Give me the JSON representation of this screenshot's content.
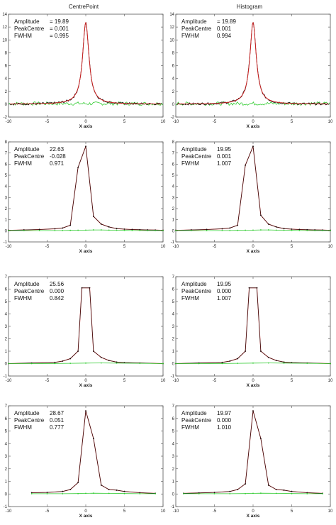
{
  "column_titles": [
    "CentrePoint",
    "Histogram"
  ],
  "colors": {
    "fit": "#cc2222",
    "data": "#111111",
    "residual": "#33cc33",
    "frame": "#555555"
  },
  "chart_data": [
    {
      "type": "line",
      "column": "CentrePoint",
      "xlabel": "X axis",
      "xlim": [
        -10,
        10
      ],
      "ylim": [
        -2,
        14
      ],
      "xticks": [
        "-10",
        "-5",
        "0",
        "5",
        "10"
      ],
      "yticks": [
        "-2",
        "0",
        "2",
        "4",
        "6",
        "8",
        "10",
        "12",
        "14"
      ],
      "stats": [
        {
          "label": "Amplitude",
          "value": "= 19.89"
        },
        {
          "label": "PeakCentre",
          "value": "= 0.001"
        },
        {
          "label": "FWHM",
          "value": "= 0.995"
        }
      ],
      "fit": {
        "shape": "lorentzian",
        "amplitude": 12.7,
        "fwhm": 0.995,
        "centre": 0.0
      },
      "series": [
        {
          "role": "data",
          "x": [
            -9.8,
            -8,
            -6,
            -5,
            -4,
            -3,
            -2.5,
            -2,
            -1.5,
            -1.2,
            -1,
            -0.8,
            -0.6,
            -0.4,
            -0.2,
            0,
            0.2,
            0.4,
            0.6,
            0.8,
            1,
            1.2,
            1.5,
            2,
            2.5,
            3,
            4,
            5,
            6,
            8,
            9.8
          ],
          "y": [
            0.1,
            0.2,
            0.3,
            0.4,
            0.6,
            0.9,
            1.3,
            1.8,
            2.8,
            3.7,
            4.5,
            5.8,
            7.6,
            9.8,
            11.9,
            12.7,
            11.8,
            9.8,
            7.6,
            5.9,
            4.4,
            3.6,
            2.7,
            1.9,
            1.2,
            0.9,
            0.6,
            0.4,
            0.3,
            0.2,
            0.1
          ]
        },
        {
          "role": "residual",
          "x": [
            -10,
            -5,
            0,
            5,
            10
          ],
          "y": [
            0.1,
            0.1,
            0.1,
            0.1,
            0.1
          ]
        }
      ]
    },
    {
      "type": "line",
      "column": "Histogram",
      "xlabel": "X axis",
      "xlim": [
        -10,
        10
      ],
      "ylim": [
        -2,
        14
      ],
      "xticks": [
        "-10",
        "-5",
        "0",
        "5",
        "10"
      ],
      "yticks": [
        "-2",
        "0",
        "2",
        "4",
        "6",
        "8",
        "10",
        "12",
        "14"
      ],
      "stats": [
        {
          "label": "Amplitude",
          "value": "= 19.89"
        },
        {
          "label": "PeakCentre",
          "value": "0.001"
        },
        {
          "label": "FWHM",
          "value": "0.994"
        }
      ],
      "fit": {
        "shape": "lorentzian",
        "amplitude": 12.7,
        "fwhm": 0.994,
        "centre": 0.0
      },
      "series": [
        {
          "role": "data",
          "x": [
            -9.8,
            -8,
            -6,
            -5,
            -4,
            -3,
            -2.5,
            -2,
            -1.5,
            -1.2,
            -1,
            -0.8,
            -0.6,
            -0.4,
            -0.2,
            0,
            0.2,
            0.4,
            0.6,
            0.8,
            1,
            1.2,
            1.5,
            2,
            2.5,
            3,
            4,
            5,
            6,
            8,
            9.8
          ],
          "y": [
            0.1,
            0.2,
            0.3,
            0.4,
            0.6,
            0.9,
            1.3,
            1.8,
            2.8,
            3.7,
            4.5,
            5.8,
            7.6,
            9.8,
            11.9,
            12.7,
            11.8,
            9.8,
            7.6,
            5.9,
            4.4,
            3.6,
            2.7,
            1.9,
            1.2,
            0.9,
            0.6,
            0.4,
            0.3,
            0.2,
            0.1
          ]
        },
        {
          "role": "residual",
          "x": [
            -10,
            -5,
            0,
            5,
            10
          ],
          "y": [
            0.1,
            0.1,
            0.1,
            0.1,
            0.1
          ]
        }
      ]
    },
    {
      "type": "line",
      "column": "CentrePoint",
      "xlabel": "X axis",
      "xlim": [
        -10,
        10
      ],
      "ylim": [
        -1,
        8
      ],
      "xticks": [
        "-10",
        "-5",
        "0",
        "5",
        "10"
      ],
      "yticks": [
        "-1",
        "0",
        "1",
        "2",
        "3",
        "4",
        "5",
        "6",
        "7",
        "8"
      ],
      "stats": [
        {
          "label": "Amplitude",
          "value": "22.63"
        },
        {
          "label": "PeakCentre",
          "value": "-0.028"
        },
        {
          "label": "FWHM",
          "value": "0.971"
        }
      ],
      "series": [
        {
          "role": "fit",
          "x": [
            -10,
            -8,
            -6,
            -4,
            -3,
            -2,
            -1,
            0,
            1,
            2,
            3,
            4,
            5,
            6,
            7,
            8,
            9,
            10
          ],
          "y": [
            0.05,
            0.08,
            0.12,
            0.18,
            0.25,
            0.5,
            5.7,
            7.6,
            1.3,
            0.6,
            0.35,
            0.2,
            0.15,
            0.12,
            0.1,
            0.08,
            0.07,
            0.05
          ]
        },
        {
          "role": "data",
          "x": [
            -10,
            -8,
            -6,
            -4,
            -3,
            -2,
            -1,
            0,
            1,
            2,
            3,
            4,
            5,
            6,
            7,
            8,
            9,
            10
          ],
          "y": [
            0.05,
            0.08,
            0.12,
            0.18,
            0.25,
            0.5,
            5.7,
            7.6,
            1.3,
            0.6,
            0.35,
            0.2,
            0.15,
            0.12,
            0.1,
            0.08,
            0.07,
            0.05
          ]
        },
        {
          "role": "residual",
          "x": [
            -10,
            -8,
            -6,
            -4,
            -3,
            -2,
            -1,
            0,
            1,
            2,
            3,
            4,
            5,
            6,
            7,
            8,
            9,
            10
          ],
          "y": [
            0.02,
            0.02,
            0.02,
            0.03,
            0.03,
            0.04,
            0.05,
            0.06,
            0.08,
            0.08,
            0.06,
            0.05,
            0.04,
            0.03,
            0.03,
            0.02,
            0.02,
            0.02
          ]
        }
      ]
    },
    {
      "type": "line",
      "column": "Histogram",
      "xlabel": "X axis",
      "xlim": [
        -10,
        10
      ],
      "ylim": [
        -1,
        8
      ],
      "xticks": [
        "-10",
        "-5",
        "0",
        "5",
        "10"
      ],
      "yticks": [
        "-1",
        "0",
        "1",
        "2",
        "3",
        "4",
        "5",
        "6",
        "7",
        "8"
      ],
      "stats": [
        {
          "label": "Amplitude",
          "value": "19.95"
        },
        {
          "label": "PeakCentre",
          "value": "0.001"
        },
        {
          "label": "FWHM",
          "value": "1.007"
        }
      ],
      "series": [
        {
          "role": "fit",
          "x": [
            -10,
            -8,
            -6,
            -4,
            -3,
            -2,
            -1,
            0,
            1,
            2,
            3,
            4,
            5,
            6,
            7,
            8,
            9,
            10
          ],
          "y": [
            0.05,
            0.08,
            0.12,
            0.18,
            0.25,
            0.5,
            5.9,
            7.6,
            1.4,
            0.6,
            0.35,
            0.2,
            0.15,
            0.12,
            0.1,
            0.08,
            0.07,
            0.05
          ]
        },
        {
          "role": "data",
          "x": [
            -10,
            -8,
            -6,
            -4,
            -3,
            -2,
            -1,
            0,
            1,
            2,
            3,
            4,
            5,
            6,
            7,
            8,
            9,
            10
          ],
          "y": [
            0.05,
            0.08,
            0.12,
            0.18,
            0.25,
            0.5,
            5.9,
            7.6,
            1.4,
            0.6,
            0.35,
            0.2,
            0.15,
            0.12,
            0.1,
            0.08,
            0.07,
            0.05
          ]
        },
        {
          "role": "residual",
          "x": [
            -10,
            -8,
            -6,
            -4,
            -3,
            -2,
            -1,
            0,
            1,
            2,
            3,
            4,
            5,
            6,
            7,
            8,
            9,
            10
          ],
          "y": [
            0.02,
            0.02,
            0.02,
            0.03,
            0.03,
            0.04,
            0.05,
            0.06,
            0.08,
            0.08,
            0.06,
            0.05,
            0.04,
            0.03,
            0.03,
            0.02,
            0.02,
            0.02
          ]
        }
      ]
    },
    {
      "type": "line",
      "column": "CentrePoint",
      "xlabel": "X axis",
      "xlim": [
        -10,
        10
      ],
      "ylim": [
        -1,
        7
      ],
      "xticks": [
        "-10",
        "-5",
        "0",
        "5",
        "10"
      ],
      "yticks": [
        "-1",
        "0",
        "1",
        "2",
        "3",
        "4",
        "5",
        "6",
        "7"
      ],
      "stats": [
        {
          "label": "Amplitude",
          "value": "25.56"
        },
        {
          "label": "PeakCentre",
          "value": "0.000"
        },
        {
          "label": "FWHM",
          "value": "0.842"
        }
      ],
      "series": [
        {
          "role": "fit",
          "x": [
            -10,
            -7,
            -4,
            -3,
            -2,
            -1,
            -0.5,
            0.5,
            1,
            2,
            3,
            4,
            5,
            7,
            10
          ],
          "y": [
            0.0,
            0.05,
            0.1,
            0.2,
            0.4,
            1.0,
            6.1,
            6.1,
            1.0,
            0.5,
            0.25,
            0.12,
            0.08,
            0.05,
            0.0
          ]
        },
        {
          "role": "data",
          "x": [
            -10,
            -7,
            -4,
            -3,
            -2,
            -1,
            -0.5,
            0.5,
            1,
            2,
            3,
            4,
            5,
            7,
            10
          ],
          "y": [
            0.0,
            0.05,
            0.1,
            0.2,
            0.4,
            1.0,
            6.1,
            6.1,
            1.0,
            0.5,
            0.25,
            0.12,
            0.08,
            0.05,
            0.0
          ]
        },
        {
          "role": "residual",
          "x": [
            -10,
            -7,
            -4,
            -2,
            0,
            2,
            4,
            7,
            10
          ],
          "y": [
            0.0,
            0.0,
            0.01,
            0.02,
            0.04,
            0.05,
            0.04,
            0.02,
            0.0
          ]
        }
      ]
    },
    {
      "type": "line",
      "column": "Histogram",
      "xlabel": "X axis",
      "xlim": [
        -10,
        10
      ],
      "ylim": [
        -1,
        7
      ],
      "xticks": [
        "-10",
        "-5",
        "0",
        "5",
        "10"
      ],
      "yticks": [
        "-1",
        "0",
        "1",
        "2",
        "3",
        "4",
        "5",
        "6",
        "7"
      ],
      "stats": [
        {
          "label": "Amplitude",
          "value": "19.95"
        },
        {
          "label": "PeakCentre",
          "value": "0.000"
        },
        {
          "label": "FWHM",
          "value": "1.007"
        }
      ],
      "series": [
        {
          "role": "fit",
          "x": [
            -10,
            -7,
            -4,
            -3,
            -2,
            -1,
            -0.5,
            0.5,
            1,
            2,
            3,
            4,
            5,
            7,
            10
          ],
          "y": [
            0.0,
            0.05,
            0.1,
            0.2,
            0.4,
            1.0,
            6.1,
            6.1,
            1.0,
            0.5,
            0.25,
            0.12,
            0.08,
            0.05,
            0.0
          ]
        },
        {
          "role": "data",
          "x": [
            -10,
            -7,
            -4,
            -3,
            -2,
            -1,
            -0.5,
            0.5,
            1,
            2,
            3,
            4,
            5,
            7,
            10
          ],
          "y": [
            0.0,
            0.05,
            0.1,
            0.2,
            0.4,
            1.0,
            6.1,
            6.1,
            1.0,
            0.5,
            0.25,
            0.12,
            0.08,
            0.05,
            0.0
          ]
        },
        {
          "role": "residual",
          "x": [
            -10,
            -7,
            -4,
            -2,
            0,
            2,
            4,
            7,
            10
          ],
          "y": [
            0.0,
            0.0,
            0.01,
            0.02,
            0.04,
            0.05,
            0.04,
            0.02,
            0.0
          ]
        }
      ]
    },
    {
      "type": "line",
      "column": "CentrePoint",
      "xlabel": "X axis",
      "xlim": [
        -10,
        10
      ],
      "ylim": [
        -1,
        7
      ],
      "xticks": [
        "-10",
        "-5",
        "0",
        "5",
        "10"
      ],
      "yticks": [
        "-1",
        "0",
        "1",
        "2",
        "3",
        "4",
        "5",
        "6",
        "7"
      ],
      "stats": [
        {
          "label": "Amplitude",
          "value": "28.67"
        },
        {
          "label": "PeakCentre",
          "value": "0.051"
        },
        {
          "label": "FWHM",
          "value": "0.777"
        }
      ],
      "series": [
        {
          "role": "fit",
          "x": [
            -7,
            -5,
            -3,
            -2,
            -1,
            0,
            1,
            2,
            3,
            4,
            5,
            7,
            9
          ],
          "y": [
            0.1,
            0.12,
            0.2,
            0.35,
            0.9,
            6.6,
            4.4,
            0.7,
            0.35,
            0.3,
            0.2,
            0.1,
            0.05
          ]
        },
        {
          "role": "data",
          "x": [
            -7,
            -5,
            -3,
            -2,
            -1,
            0,
            1,
            2,
            3,
            4,
            5,
            7,
            9
          ],
          "y": [
            0.1,
            0.12,
            0.2,
            0.35,
            0.9,
            6.6,
            4.4,
            0.7,
            0.35,
            0.3,
            0.2,
            0.1,
            0.05
          ]
        },
        {
          "role": "residual",
          "x": [
            -7,
            -5,
            -3,
            -1,
            0,
            1,
            3,
            5,
            7,
            9
          ],
          "y": [
            0.02,
            0.02,
            0.02,
            0.03,
            0.05,
            0.06,
            0.05,
            0.03,
            0.02,
            0.02
          ]
        }
      ]
    },
    {
      "type": "line",
      "column": "Histogram",
      "xlabel": "X axis",
      "xlim": [
        -10,
        10
      ],
      "ylim": [
        -1,
        7
      ],
      "xticks": [
        "-10",
        "-5",
        "0",
        "5",
        "10"
      ],
      "yticks": [
        "-1",
        "0",
        "1",
        "2",
        "3",
        "4",
        "5",
        "6",
        "7"
      ],
      "stats": [
        {
          "label": "Amplitude",
          "value": "19.97"
        },
        {
          "label": "PeakCentre",
          "value": "0.000"
        },
        {
          "label": "FWHM",
          "value": "1.010"
        }
      ],
      "series": [
        {
          "role": "fit",
          "x": [
            -9,
            -7,
            -5,
            -3,
            -2,
            -1,
            0,
            1,
            2,
            3,
            4,
            5,
            7,
            9
          ],
          "y": [
            0.05,
            0.08,
            0.12,
            0.2,
            0.35,
            0.8,
            6.6,
            4.4,
            0.7,
            0.35,
            0.3,
            0.2,
            0.1,
            0.05
          ]
        },
        {
          "role": "data",
          "x": [
            -9,
            -7,
            -5,
            -3,
            -2,
            -1,
            0,
            1,
            2,
            3,
            4,
            5,
            7,
            9
          ],
          "y": [
            0.05,
            0.08,
            0.12,
            0.2,
            0.35,
            0.8,
            6.6,
            4.4,
            0.7,
            0.35,
            0.3,
            0.2,
            0.1,
            0.05
          ]
        },
        {
          "role": "residual",
          "x": [
            -9,
            -7,
            -5,
            -3,
            -1,
            0,
            1,
            3,
            5,
            7,
            9
          ],
          "y": [
            0.02,
            0.02,
            0.02,
            0.02,
            0.03,
            0.05,
            0.06,
            0.05,
            0.03,
            0.02,
            0.02
          ]
        }
      ]
    }
  ]
}
